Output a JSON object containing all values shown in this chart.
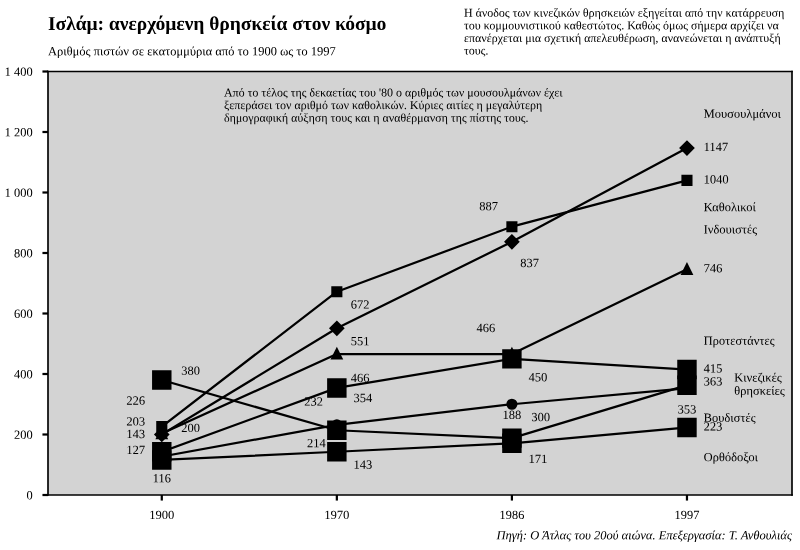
{
  "chart_data": {
    "type": "line",
    "title": "Ισλάμ: ανερχόμενη θρησκεία στον κόσμο",
    "subtitle": "Αριθμός πιστών σε εκατομμύρια από το 1900 ως το 1997",
    "categories": [
      "1900",
      "1970",
      "1986",
      "1997"
    ],
    "series": [
      {
        "name": "Μουσουλμάνοι",
        "color": "#000000",
        "marker": "diamond",
        "values": [
          200,
          551,
          837,
          1147
        ]
      },
      {
        "name": "Καθολικοί",
        "color": "#000000",
        "marker": "square",
        "values": [
          226,
          672,
          887,
          1040
        ]
      },
      {
        "name": "Ινδουιστές",
        "color": "#000000",
        "marker": "triangle",
        "values": [
          203,
          466,
          466,
          746
        ]
      },
      {
        "name": "Προτεστάντες",
        "color": "#000000",
        "marker": "square",
        "values": [
          143,
          354,
          450,
          415
        ]
      },
      {
        "name": "Κινεζικές θρησκείες",
        "color": "#000000",
        "marker": "square",
        "values": [
          380,
          214,
          188,
          363
        ]
      },
      {
        "name": "Βουδιστές",
        "color": "#000000",
        "marker": "circle",
        "values": [
          127,
          232,
          300,
          353
        ]
      },
      {
        "name": "Ορθόδοξοι",
        "color": "#000000",
        "marker": "square",
        "values": [
          116,
          143,
          171,
          223
        ]
      }
    ],
    "ylim": [
      0,
      1400
    ],
    "yticks": [
      0,
      200,
      400,
      600,
      800,
      {
        "value": 1000,
        "label": "1 000"
      },
      {
        "value": 1200,
        "label": "1 200"
      },
      {
        "value": 1400,
        "label": "1 400"
      }
    ],
    "data_labels": true,
    "legend": false,
    "grid": false,
    "line_style": "solid",
    "annotations": [
      "Η άνοδος των κινεζικών θρησκειών εξηγείται από την κατάρρευση του κομμουνιστικού καθεστώτος. Καθώς όμως σήμερα αρχίζει να επανέρχεται μια σχετική απελευθέρωση, ανανεώνεται η ανάπτυξή τους.",
      "Από το τέλος της δεκαετίας του '80 ο αριθμός των μουσουλμάνων έχει ξεπεράσει τον αριθμό των καθολικών. Κύριες αιτίες η μεγαλύτερη δημογραφική αύξηση τους και η αναθέρμανση της πίστης τους.",
      "Πηγή: Ο Άτλας του 20ού αιώνα. Επεξεργασία: Τ. Ανθουλιάς"
    ]
  }
}
